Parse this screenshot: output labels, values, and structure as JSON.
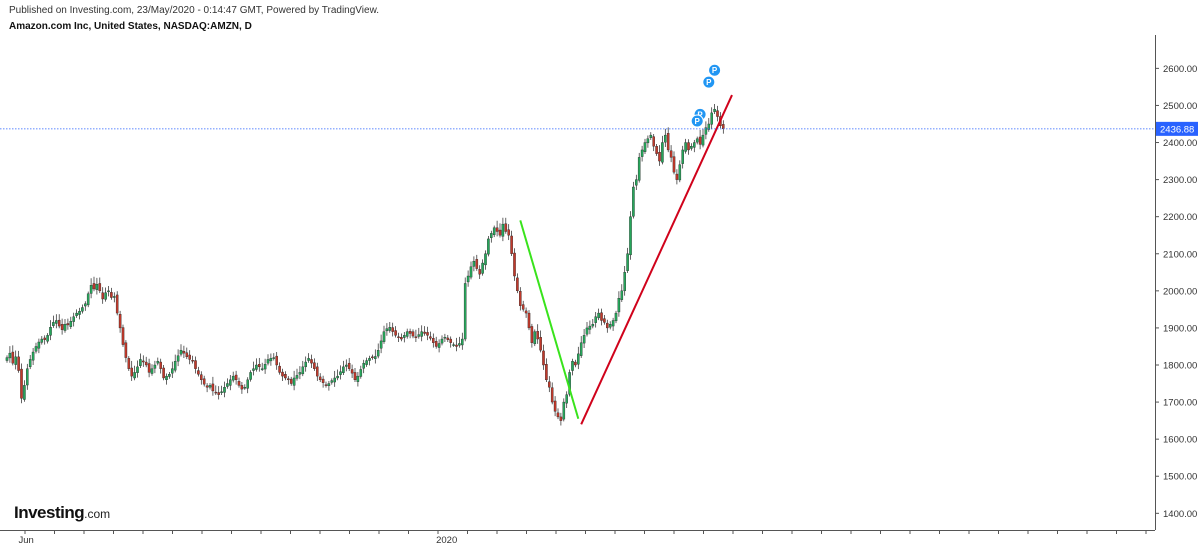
{
  "header": {
    "published": "Published on Investing.com, 23/May/2020 - 0:14:47 GMT, Powered by TradingView.",
    "symbol": "Amazon.com Inc, United States, NASDAQ:AMZN, D"
  },
  "logo": {
    "brand": "Investing",
    "suffix": ".com"
  },
  "chart_data": {
    "type": "candlestick",
    "y_ticks": [
      "2600.00",
      "2500.00",
      "2400.00",
      "2300.00",
      "2200.00",
      "2100.00",
      "2000.00",
      "1900.00",
      "1800.00",
      "1700.00",
      "1600.00",
      "1500.00",
      "1400.00"
    ],
    "y_tick_values": [
      2600,
      2500,
      2400,
      2300,
      2200,
      2100,
      2000,
      1900,
      1800,
      1700,
      1600,
      1500,
      1400
    ],
    "ylim": [
      1355,
      2690
    ],
    "x_labels": [
      {
        "label": "Jun",
        "bar": 5
      },
      {
        "label": "2020",
        "bar": 149
      }
    ],
    "last_price": {
      "label": "2436.88",
      "value": 2436.88
    },
    "colors": {
      "up": "#26a65b",
      "down": "#c0392b",
      "trend_up": "#d0021b",
      "trend_down": "#39e31c",
      "price_line": "#2962ff",
      "marker": "#2196f3"
    },
    "markers": [
      {
        "text": "P",
        "bar": 244,
        "value": 2595
      },
      {
        "text": "P",
        "bar": 242,
        "value": 2563
      },
      {
        "text": "P",
        "bar": 239,
        "value": 2476
      },
      {
        "text": "P",
        "bar": 238,
        "value": 2458
      }
    ],
    "trendlines": [
      {
        "name": "",
        "color": "#39e31c",
        "points": [
          [
            177,
            2190
          ],
          [
            197,
            1655
          ]
        ]
      },
      {
        "name": "",
        "color": "#d0021b",
        "points": [
          [
            198,
            1640
          ],
          [
            250,
            2528
          ]
        ]
      }
    ],
    "gap": {
      "from_bar": 167,
      "to_bar": 169
    },
    "closes": [
      1820,
      1832,
      1805,
      1822,
      1785,
      1710,
      1745,
      1790,
      1815,
      1835,
      1850,
      1862,
      1870,
      1868,
      1880,
      1902,
      1915,
      1920,
      1905,
      1895,
      1910,
      1908,
      1918,
      1930,
      1940,
      1945,
      1955,
      1965,
      1992,
      2015,
      2005,
      2018,
      2000,
      1978,
      1995,
      2000,
      1982,
      1985,
      1940,
      1900,
      1855,
      1820,
      1790,
      1770,
      1780,
      1795,
      1815,
      1808,
      1800,
      1780,
      1790,
      1800,
      1810,
      1790,
      1765,
      1770,
      1775,
      1790,
      1810,
      1825,
      1840,
      1832,
      1822,
      1815,
      1810,
      1790,
      1775,
      1760,
      1748,
      1740,
      1745,
      1730,
      1725,
      1720,
      1728,
      1740,
      1750,
      1760,
      1770,
      1760,
      1745,
      1735,
      1740,
      1760,
      1780,
      1790,
      1800,
      1795,
      1790,
      1802,
      1815,
      1818,
      1820,
      1800,
      1780,
      1770,
      1765,
      1760,
      1750,
      1765,
      1772,
      1780,
      1795,
      1808,
      1818,
      1805,
      1790,
      1770,
      1760,
      1752,
      1745,
      1750,
      1758,
      1765,
      1770,
      1782,
      1795,
      1800,
      1790,
      1778,
      1760,
      1770,
      1788,
      1805,
      1812,
      1818,
      1820,
      1823,
      1840,
      1865,
      1890,
      1898,
      1902,
      1890,
      1880,
      1875,
      1870,
      1880,
      1890,
      1885,
      1878,
      1875,
      1882,
      1890,
      1885,
      1880,
      1872,
      1860,
      1850,
      1858,
      1870,
      1875,
      1868,
      1860,
      1855,
      1850,
      1858,
      1870,
      2020,
      2040,
      2065,
      2080,
      2060,
      2045,
      2075,
      2100,
      2140,
      2155,
      2170,
      2160,
      2150,
      2180,
      2160,
      2150,
      2100,
      2040,
      2000,
      1960,
      1950,
      1940,
      1900,
      1860,
      1890,
      1870,
      1840,
      1800,
      1760,
      1740,
      1700,
      1675,
      1660,
      1650,
      1700,
      1720,
      1780,
      1810,
      1800,
      1830,
      1860,
      1880,
      1900,
      1905,
      1910,
      1930,
      1940,
      1920,
      1915,
      1900,
      1910,
      1920,
      1940,
      1980,
      2000,
      2050,
      2100,
      2200,
      2280,
      2300,
      2360,
      2380,
      2400,
      2410,
      2420,
      2390,
      2370,
      2350,
      2400,
      2420,
      2380,
      2360,
      2320,
      2300,
      2340,
      2380,
      2400,
      2380,
      2390,
      2400,
      2410,
      2395,
      2420,
      2440,
      2450,
      2480,
      2490,
      2470,
      2445,
      2436.88
    ]
  }
}
